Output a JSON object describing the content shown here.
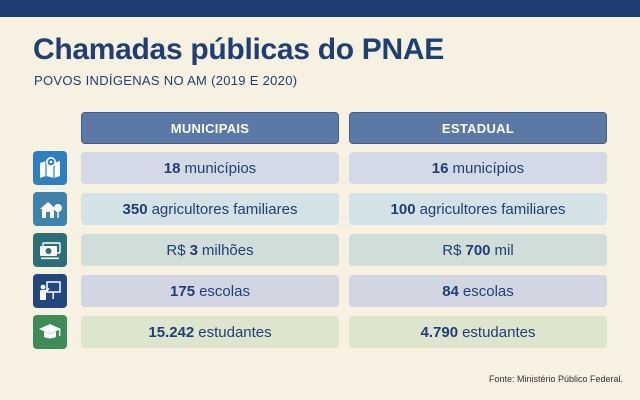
{
  "header": {
    "title": "Chamadas públicas do PNAE",
    "subtitle": "POVOS INDÍGENAS NO AM (2019 E 2020)"
  },
  "columns": {
    "municipal": "MUNICIPAIS",
    "estadual": "ESTADUAL"
  },
  "rows": [
    {
      "icon": "map-location-icon",
      "icon_color": "#2e7fc0",
      "cell_color": "#d3d9e6",
      "municipal": {
        "prefix": "",
        "value": "18",
        "unit": "municípios"
      },
      "estadual": {
        "prefix": "",
        "value": "16",
        "unit": "municípios"
      }
    },
    {
      "icon": "farm-house-icon",
      "icon_color": "#3f83ad",
      "cell_color": "#d3e2e6",
      "municipal": {
        "prefix": "",
        "value": "350",
        "unit": "agricultores familiares"
      },
      "estadual": {
        "prefix": "",
        "value": "100",
        "unit": "agricultores familiares"
      }
    },
    {
      "icon": "money-icon",
      "icon_color": "#2d6f79",
      "cell_color": "#d1ddd9",
      "municipal": {
        "prefix": "R$",
        "value": "3",
        "unit": "milhões"
      },
      "estadual": {
        "prefix": "R$",
        "value": "700",
        "unit": "mil"
      }
    },
    {
      "icon": "teacher-board-icon",
      "icon_color": "#23477d",
      "cell_color": "#d2d6e2",
      "municipal": {
        "prefix": "",
        "value": "175",
        "unit": "escolas"
      },
      "estadual": {
        "prefix": "",
        "value": "84",
        "unit": "escolas"
      }
    },
    {
      "icon": "graduation-cap-icon",
      "icon_color": "#3e8b58",
      "cell_color": "#dde5cf",
      "municipal": {
        "prefix": "",
        "value": "15.242",
        "unit": "estudantes"
      },
      "estadual": {
        "prefix": "",
        "value": "4.790",
        "unit": "estudantes"
      }
    }
  ],
  "footer": {
    "source": "Fonte: Ministério Público Federal."
  }
}
